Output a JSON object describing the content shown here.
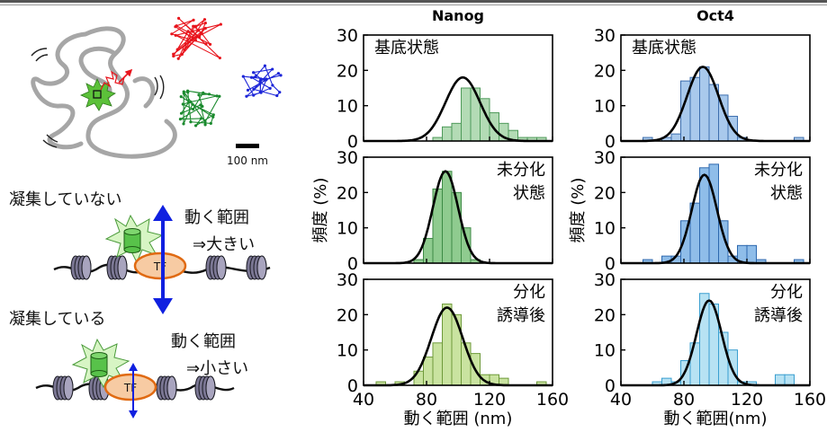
{
  "schematic": {
    "scale_bar_label": "100 nm",
    "not_condensed_label": "凝集していない",
    "condensed_label": "凝集している",
    "range_large_line1": "動く範囲",
    "range_large_line2": "⇒大きい",
    "range_small_line1": "動く範囲",
    "range_small_line2": "⇒小さい",
    "tf_label": "TF",
    "colors": {
      "red": "#e8141c",
      "green": "#1b8a2e",
      "blue": "#1c25d8",
      "gray": "#a6a6a6",
      "tf_fill": "#f7cba3",
      "tf_edge": "#e06a12",
      "arrow_blue": "#1020e0"
    }
  },
  "chart_data": [
    {
      "type": "bar",
      "panel": "Nanog-基底状態",
      "title": "Nanog",
      "annotation": [
        "基底状態"
      ],
      "ylabel": "",
      "xlabel": "",
      "xlim": [
        40,
        160
      ],
      "ylim": [
        0,
        30
      ],
      "bin_width": 6,
      "bin_starts": [
        84,
        90,
        96,
        102,
        108,
        114,
        120,
        126,
        132,
        138,
        144,
        150
      ],
      "values": [
        1,
        4,
        5,
        15,
        15,
        12,
        8,
        5,
        3,
        1,
        1,
        1
      ],
      "fit": {
        "mean": 103,
        "sd": 11,
        "peak": 18
      },
      "bar_color": "#b3dbb5",
      "bar_edge": "#4e9a5a"
    },
    {
      "type": "bar",
      "panel": "Nanog-未分化状態",
      "title": "",
      "annotation": [
        "未分化",
        "状態"
      ],
      "ylabel": "頻度 (%)",
      "xlabel": "",
      "xlim": [
        40,
        160
      ],
      "ylim": [
        0,
        30
      ],
      "bin_width": 6,
      "bin_starts": [
        72,
        78,
        84,
        90,
        96,
        102,
        108
      ],
      "values": [
        1,
        7,
        21,
        26,
        20,
        10,
        1
      ],
      "fit": {
        "mean": 92,
        "sd": 8,
        "peak": 26
      },
      "bar_color": "#8fcb8f",
      "bar_edge": "#3d8a45"
    },
    {
      "type": "bar",
      "panel": "Nanog-分化誘導後",
      "title": "",
      "annotation": [
        "分化",
        "誘導後"
      ],
      "ylabel": "",
      "xlabel": "動く範囲 (nm)",
      "xlim": [
        40,
        160
      ],
      "ylim": [
        0,
        30
      ],
      "bin_width": 6,
      "bin_starts": [
        48,
        60,
        72,
        78,
        84,
        90,
        96,
        102,
        108,
        114,
        120,
        126,
        150
      ],
      "values": [
        1,
        1,
        4,
        8,
        12,
        23,
        20,
        12,
        9,
        3,
        3,
        2,
        1
      ],
      "fit": {
        "mean": 93,
        "sd": 10,
        "peak": 22
      },
      "bar_color": "#c9e3a0",
      "bar_edge": "#6e9a3a"
    },
    {
      "type": "bar",
      "panel": "Oct4-基底状態",
      "title": "Oct4",
      "annotation": [
        "基底状態"
      ],
      "ylabel": "",
      "xlabel": "",
      "xlim": [
        40,
        160
      ],
      "ylim": [
        0,
        30
      ],
      "bin_width": 6,
      "bin_starts": [
        54,
        66,
        72,
        78,
        84,
        90,
        96,
        102,
        108,
        114,
        150
      ],
      "values": [
        1,
        1,
        2,
        17,
        18,
        21,
        16,
        13,
        7,
        1,
        1
      ],
      "fit": {
        "mean": 92,
        "sd": 10,
        "peak": 21
      },
      "bar_color": "#a9c9ec",
      "bar_edge": "#3d6eae"
    },
    {
      "type": "bar",
      "panel": "Oct4-未分化状態",
      "title": "",
      "annotation": [
        "未分化",
        "状態"
      ],
      "ylabel": "頻度 (%)",
      "xlabel": "",
      "xlim": [
        40,
        160
      ],
      "ylim": [
        0,
        30
      ],
      "bin_width": 6,
      "bin_starts": [
        54,
        66,
        72,
        78,
        84,
        90,
        96,
        102,
        108,
        114,
        120,
        126,
        150
      ],
      "values": [
        1,
        2,
        2,
        12,
        17,
        27,
        28,
        12,
        2,
        5,
        5,
        1,
        1
      ],
      "fit": {
        "mean": 93,
        "sd": 8,
        "peak": 25
      },
      "bar_color": "#8fbde9",
      "bar_edge": "#2d68ae"
    },
    {
      "type": "bar",
      "panel": "Oct4-分化誘導後",
      "title": "",
      "annotation": [
        "分化",
        "誘導後"
      ],
      "ylabel": "",
      "xlabel": "動く範囲(nm)",
      "xlim": [
        40,
        160
      ],
      "ylim": [
        0,
        30
      ],
      "bin_width": 6,
      "bin_starts": [
        60,
        66,
        72,
        78,
        84,
        90,
        96,
        102,
        108,
        114,
        120,
        138,
        144
      ],
      "values": [
        1,
        2,
        1,
        7,
        12,
        26,
        23,
        15,
        10,
        1,
        1,
        3,
        3
      ],
      "fit": {
        "mean": 96,
        "sd": 8,
        "peak": 24
      },
      "bar_color": "#b7e2f3",
      "bar_edge": "#3a9fd0"
    }
  ],
  "axes": {
    "yticks": [
      "0",
      "10",
      "20",
      "30"
    ],
    "xticks": [
      "40",
      "80",
      "120",
      "160"
    ]
  }
}
